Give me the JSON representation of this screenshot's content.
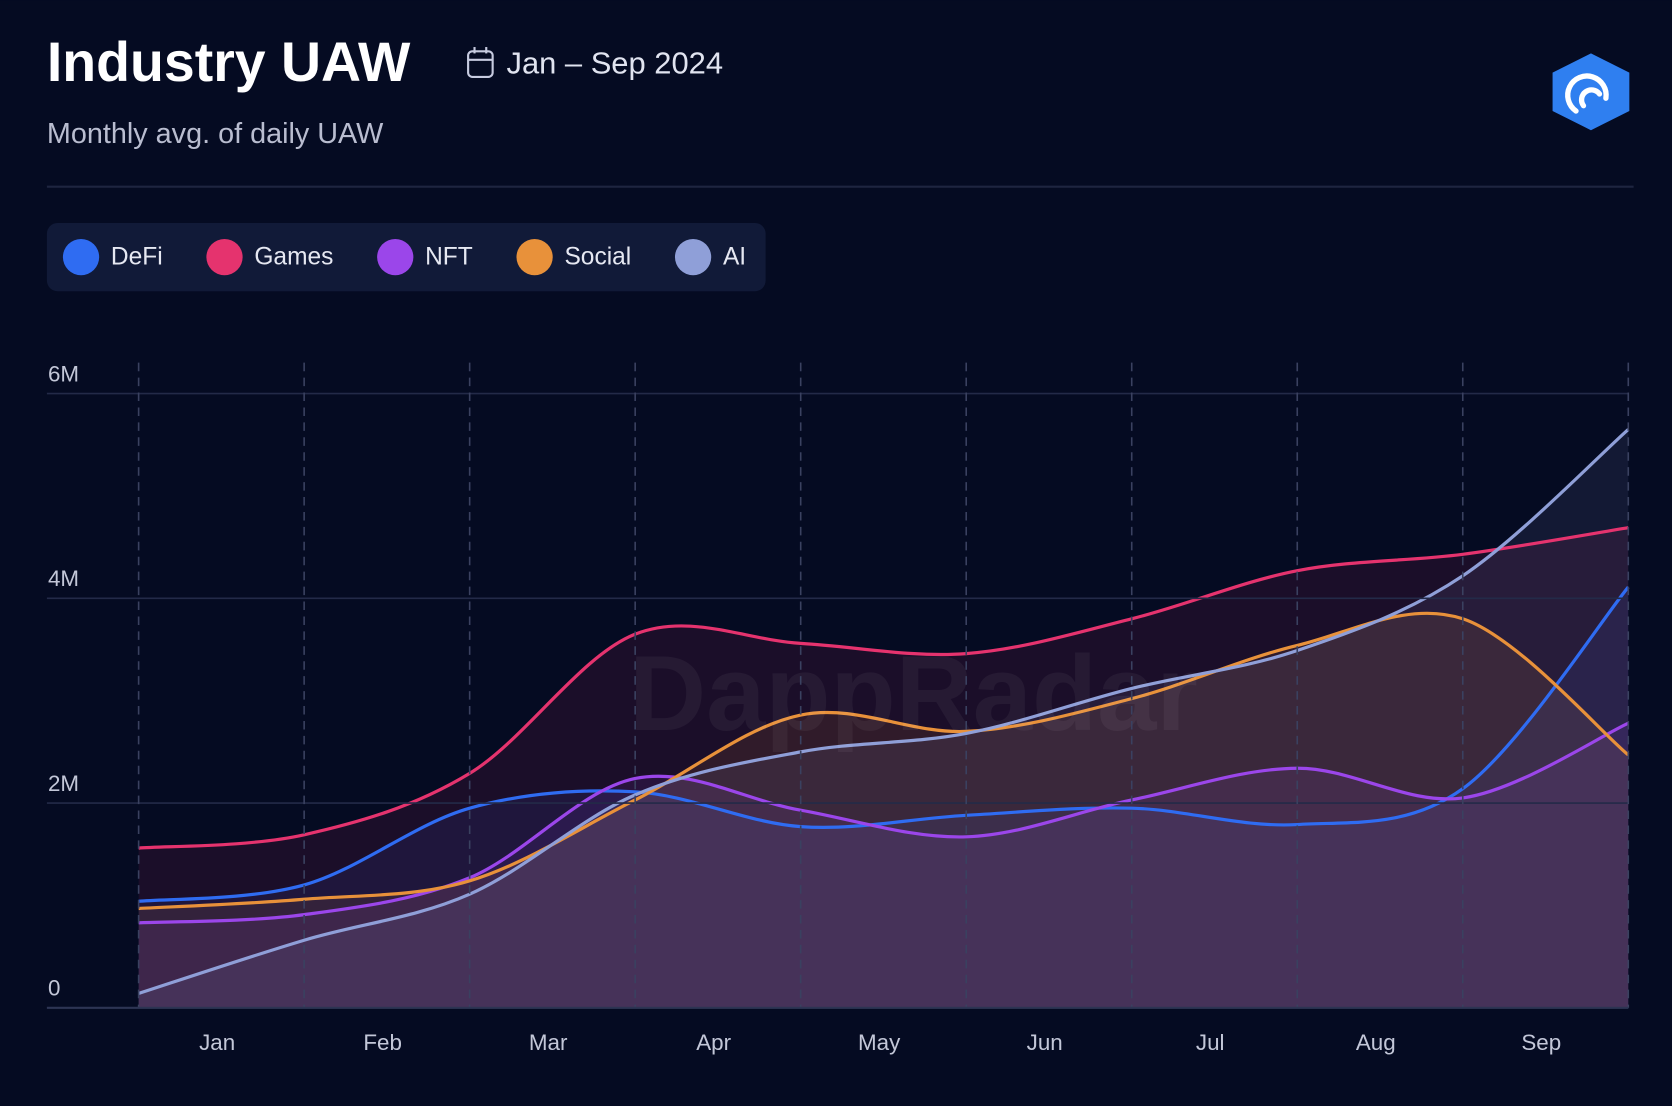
{
  "chart_data": {
    "type": "line",
    "title": "Industry UAW",
    "date_range": "Jan – Sep 2024",
    "subtitle": "Monthly avg. of daily UAW",
    "watermark": "DappRadar",
    "categories": [
      "Jan",
      "Feb",
      "Mar",
      "Apr",
      "May",
      "Jun",
      "Jul",
      "Aug",
      "Sep",
      null
    ],
    "series": [
      {
        "name": "DeFi",
        "color": "#2f6cf2",
        "values": [
          1040000,
          1200000,
          1950000,
          2110000,
          1770000,
          1880000,
          1950000,
          1790000,
          2140000,
          4110000
        ]
      },
      {
        "name": "Games",
        "color": "#e5336e",
        "values": [
          1560000,
          1690000,
          2290000,
          3650000,
          3560000,
          3460000,
          3800000,
          4270000,
          4430000,
          4690000
        ]
      },
      {
        "name": "NFT",
        "color": "#9b46ea",
        "values": [
          830000,
          910000,
          1270000,
          2240000,
          1930000,
          1670000,
          2030000,
          2340000,
          2050000,
          2780000
        ]
      },
      {
        "name": "Social",
        "color": "#e8913a",
        "values": [
          970000,
          1060000,
          1240000,
          2030000,
          2860000,
          2700000,
          3020000,
          3540000,
          3800000,
          2470000
        ]
      },
      {
        "name": "AI",
        "color": "#8f9fd8",
        "values": [
          140000,
          660000,
          1110000,
          2080000,
          2500000,
          2680000,
          3120000,
          3490000,
          4220000,
          5650000
        ]
      }
    ],
    "ylim": [
      0,
      6000000
    ],
    "yticks": [
      0,
      {
        "value": 2000000,
        "label": "2M"
      },
      {
        "value": 4000000,
        "label": "4M"
      },
      {
        "value": 6000000,
        "label": "6M"
      }
    ],
    "grid": true,
    "legend": "top-left"
  }
}
